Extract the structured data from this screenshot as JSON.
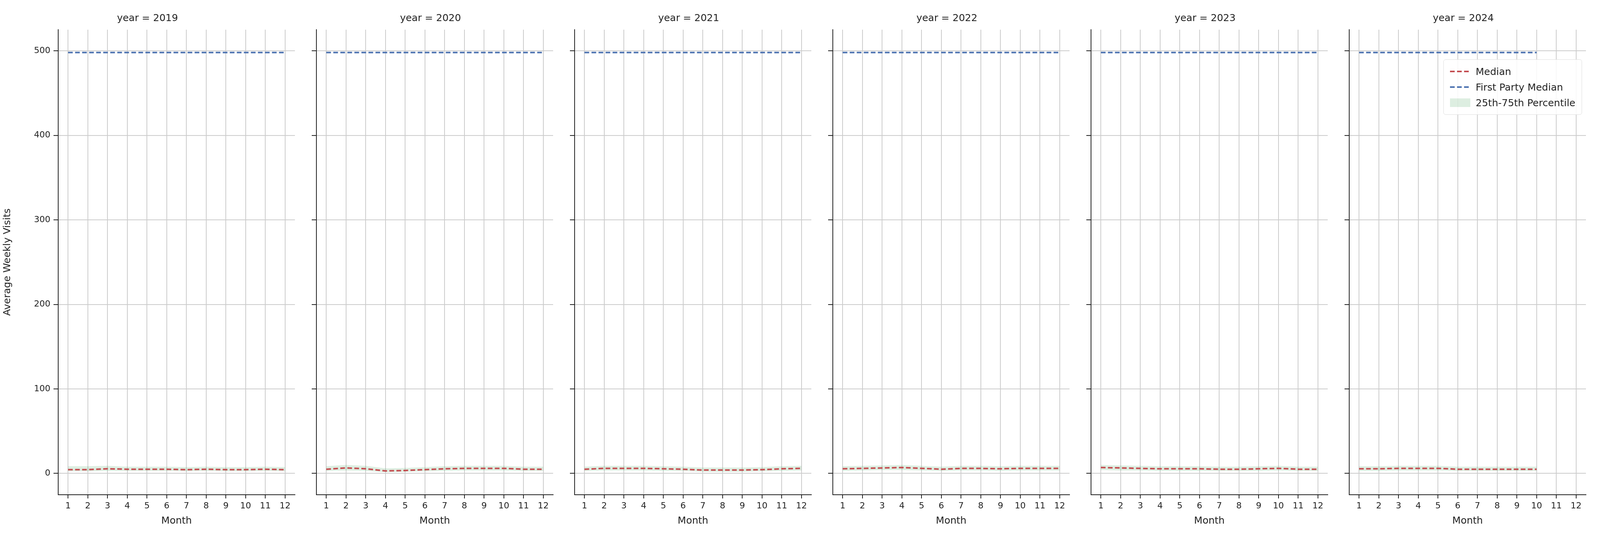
{
  "chart_data": [
    {
      "type": "line",
      "title": "year = 2019",
      "xlabel": "Month",
      "ylabel": "Average Weekly Visits",
      "x": [
        1,
        2,
        3,
        4,
        5,
        6,
        7,
        8,
        9,
        10,
        11,
        12
      ],
      "xlim": [
        0.5,
        12.5
      ],
      "xticks": [
        1,
        2,
        3,
        4,
        5,
        6,
        7,
        8,
        9,
        10,
        11,
        12
      ],
      "ylim": [
        -25,
        525
      ],
      "yticks": [
        0,
        100,
        200,
        300,
        400,
        500
      ],
      "grid": true,
      "series": [
        {
          "name": "Median",
          "color": "#c44e52",
          "line_style": "dashed",
          "values": [
            4.5,
            4.5,
            5.5,
            5,
            5,
            5,
            4.5,
            5,
            4.5,
            4.5,
            5,
            4.5
          ]
        },
        {
          "name": "First Party Median",
          "color": "#4c72b0",
          "line_style": "dashed",
          "values": [
            498,
            498,
            498,
            498,
            498,
            498,
            498,
            498,
            498,
            498,
            498,
            498
          ]
        },
        {
          "name": "25th-75th Percentile",
          "type": "band",
          "color": "#55a868",
          "lower": [
            2.5,
            2.5,
            3,
            3,
            3,
            3,
            2.5,
            3,
            2.5,
            2.5,
            3,
            2.5
          ],
          "upper": [
            8.5,
            8.5,
            9,
            8,
            8,
            8,
            7.5,
            8,
            7.5,
            7.5,
            8,
            7.5
          ]
        }
      ]
    },
    {
      "type": "line",
      "title": "year = 2020",
      "xlabel": "Month",
      "tick_labels": "x",
      "x": [
        1,
        2,
        3,
        4,
        5,
        6,
        7,
        8,
        9,
        10,
        11,
        12
      ],
      "xlim": [
        0.5,
        12.5
      ],
      "xticks": [
        1,
        2,
        3,
        4,
        5,
        6,
        7,
        8,
        9,
        10,
        11,
        12
      ],
      "ylim": [
        -25,
        525
      ],
      "yticks": [
        0,
        100,
        200,
        300,
        400,
        500
      ],
      "grid": true,
      "series": [
        {
          "name": "Median",
          "color": "#c44e52",
          "line_style": "dashed",
          "values": [
            5,
            6.5,
            5.5,
            3,
            3.5,
            4.5,
            5.5,
            6,
            6,
            6,
            5,
            5
          ]
        },
        {
          "name": "First Party Median",
          "color": "#4c72b0",
          "line_style": "dashed",
          "values": [
            498,
            498,
            498,
            498,
            498,
            498,
            498,
            498,
            498,
            498,
            498,
            498
          ]
        },
        {
          "name": "25th-75th Percentile",
          "type": "band",
          "color": "#55a868",
          "lower": [
            3,
            3.5,
            3,
            1.5,
            2,
            2.5,
            3,
            3.5,
            3.5,
            3.5,
            3,
            3
          ],
          "upper": [
            8.5,
            10,
            9,
            6,
            6.5,
            7.5,
            8.5,
            9,
            9,
            9,
            8,
            8
          ]
        }
      ]
    },
    {
      "type": "line",
      "title": "year = 2021",
      "xlabel": "Month",
      "tick_labels": "x",
      "x": [
        1,
        2,
        3,
        4,
        5,
        6,
        7,
        8,
        9,
        10,
        11,
        12
      ],
      "xlim": [
        0.5,
        12.5
      ],
      "xticks": [
        1,
        2,
        3,
        4,
        5,
        6,
        7,
        8,
        9,
        10,
        11,
        12
      ],
      "ylim": [
        -25,
        525
      ],
      "yticks": [
        0,
        100,
        200,
        300,
        400,
        500
      ],
      "grid": true,
      "series": [
        {
          "name": "Median",
          "color": "#c44e52",
          "line_style": "dashed",
          "values": [
            5,
            6,
            6,
            6,
            5.5,
            5,
            4,
            4,
            4,
            4.5,
            5.5,
            6
          ]
        },
        {
          "name": "First Party Median",
          "color": "#4c72b0",
          "line_style": "dashed",
          "values": [
            498,
            498,
            498,
            498,
            498,
            498,
            498,
            498,
            498,
            498,
            498,
            498
          ]
        },
        {
          "name": "25th-75th Percentile",
          "type": "band",
          "color": "#55a868",
          "lower": [
            3,
            3.5,
            3.5,
            3.5,
            3,
            3,
            2,
            2,
            2,
            2.5,
            3,
            3.5
          ],
          "upper": [
            8,
            9,
            9,
            9,
            8.5,
            8,
            7,
            7,
            7,
            7.5,
            8.5,
            9
          ]
        }
      ]
    },
    {
      "type": "line",
      "title": "year = 2022",
      "xlabel": "Month",
      "tick_labels": "x",
      "x": [
        1,
        2,
        3,
        4,
        5,
        6,
        7,
        8,
        9,
        10,
        11,
        12
      ],
      "xlim": [
        0.5,
        12.5
      ],
      "xticks": [
        1,
        2,
        3,
        4,
        5,
        6,
        7,
        8,
        9,
        10,
        11,
        12
      ],
      "ylim": [
        -25,
        525
      ],
      "yticks": [
        0,
        100,
        200,
        300,
        400,
        500
      ],
      "grid": true,
      "series": [
        {
          "name": "Median",
          "color": "#c44e52",
          "line_style": "dashed",
          "values": [
            5.5,
            6,
            6.5,
            7,
            6,
            5,
            6,
            6,
            5.5,
            6,
            6,
            6
          ]
        },
        {
          "name": "First Party Median",
          "color": "#4c72b0",
          "line_style": "dashed",
          "values": [
            498,
            498,
            498,
            498,
            498,
            498,
            498,
            498,
            498,
            498,
            498,
            498
          ]
        },
        {
          "name": "25th-75th Percentile",
          "type": "band",
          "color": "#55a868",
          "lower": [
            3,
            3.5,
            4,
            4,
            3.5,
            3,
            3.5,
            3.5,
            3,
            3.5,
            3.5,
            3.5
          ],
          "upper": [
            8.5,
            9,
            9.5,
            10,
            9,
            8,
            9,
            9,
            8.5,
            9,
            9,
            9
          ]
        }
      ]
    },
    {
      "type": "line",
      "title": "year = 2023",
      "xlabel": "Month",
      "tick_labels": "x",
      "x": [
        1,
        2,
        3,
        4,
        5,
        6,
        7,
        8,
        9,
        10,
        11,
        12
      ],
      "xlim": [
        0.5,
        12.5
      ],
      "xticks": [
        1,
        2,
        3,
        4,
        5,
        6,
        7,
        8,
        9,
        10,
        11,
        12
      ],
      "ylim": [
        -25,
        525
      ],
      "yticks": [
        0,
        100,
        200,
        300,
        400,
        500
      ],
      "grid": true,
      "series": [
        {
          "name": "Median",
          "color": "#c44e52",
          "line_style": "dashed",
          "values": [
            7,
            6.5,
            6,
            5.5,
            5.5,
            5.5,
            5,
            5,
            5.5,
            6,
            5,
            5
          ]
        },
        {
          "name": "First Party Median",
          "color": "#4c72b0",
          "line_style": "dashed",
          "values": [
            498,
            498,
            498,
            498,
            498,
            498,
            498,
            498,
            498,
            498,
            498,
            498
          ]
        },
        {
          "name": "25th-75th Percentile",
          "type": "band",
          "color": "#55a868",
          "lower": [
            4,
            3.5,
            3.5,
            3,
            3,
            3,
            3,
            3,
            3,
            3.5,
            3,
            3
          ],
          "upper": [
            10,
            9.5,
            9,
            8.5,
            8.5,
            8.5,
            8,
            8,
            8.5,
            9,
            8,
            8
          ]
        }
      ]
    },
    {
      "type": "line",
      "title": "year = 2024",
      "xlabel": "Month",
      "tick_labels": "x",
      "legend": "upper right",
      "x": [
        1,
        2,
        3,
        4,
        5,
        6,
        7,
        8,
        9,
        10
      ],
      "xlim": [
        0.5,
        12.5
      ],
      "xticks": [
        1,
        2,
        3,
        4,
        5,
        6,
        7,
        8,
        9,
        10,
        11,
        12
      ],
      "ylim": [
        -25,
        525
      ],
      "yticks": [
        0,
        100,
        200,
        300,
        400,
        500
      ],
      "grid": true,
      "series": [
        {
          "name": "Median",
          "color": "#c44e52",
          "line_style": "dashed",
          "values": [
            5.5,
            5.5,
            6,
            6,
            6,
            5,
            5,
            5,
            5,
            5
          ]
        },
        {
          "name": "First Party Median",
          "color": "#4c72b0",
          "line_style": "dashed",
          "values": [
            498,
            498,
            498,
            498,
            498,
            498,
            498,
            498,
            498,
            498
          ]
        },
        {
          "name": "25th-75th Percentile",
          "type": "band",
          "color": "#55a868",
          "lower": [
            3,
            3,
            3.5,
            3.5,
            3.5,
            3,
            3,
            3,
            3,
            3
          ],
          "upper": [
            8.5,
            8.5,
            9,
            9,
            9,
            8,
            8,
            8,
            8,
            8
          ]
        }
      ]
    }
  ]
}
